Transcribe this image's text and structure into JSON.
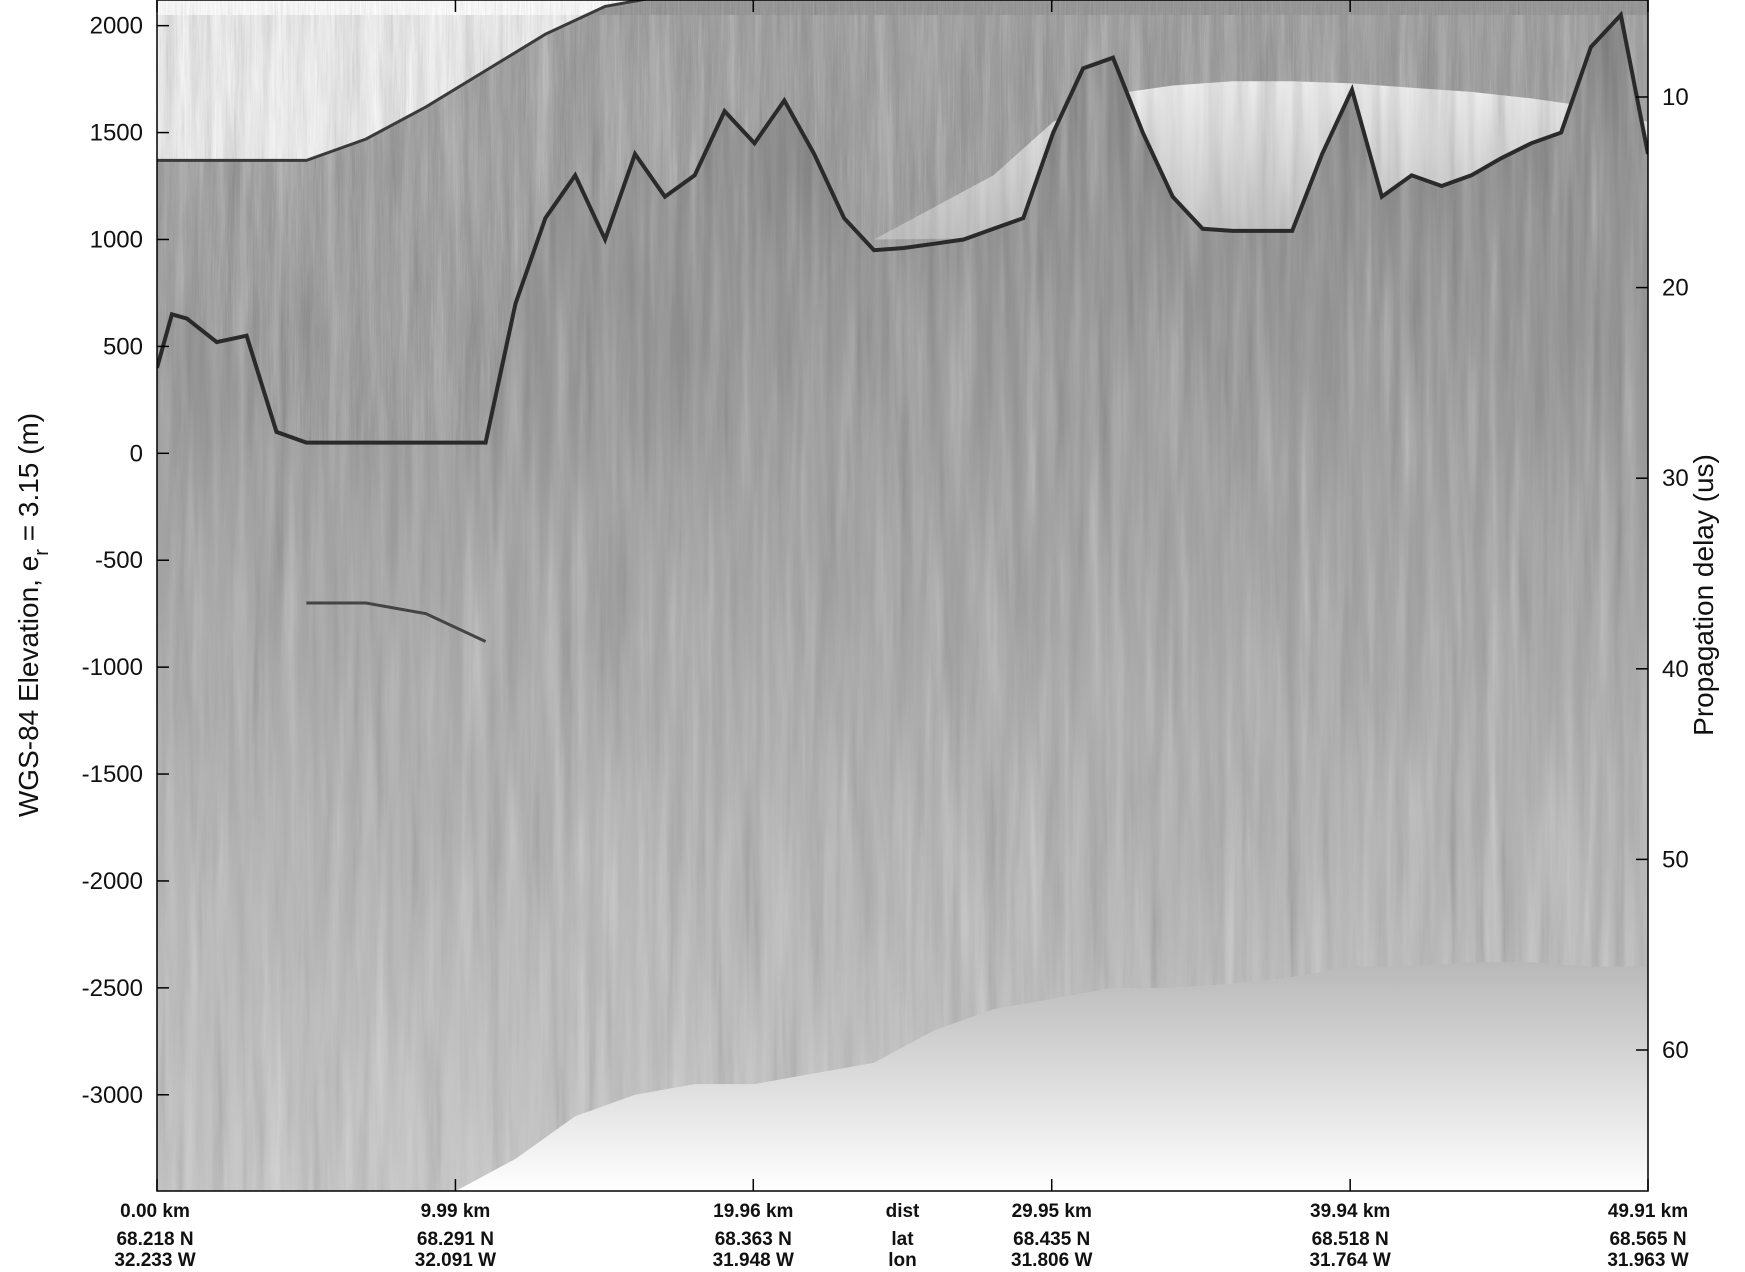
{
  "chart_data": {
    "type": "heatmap",
    "description_colormap": "grayscale",
    "left_axis": {
      "label_main": "WGS-84 Elevation, e",
      "label_sub": "r",
      "label_rest": " = 3.15 (m)",
      "ticks": [
        2000,
        1500,
        1000,
        500,
        0,
        -500,
        -1000,
        -1500,
        -2000,
        -2500,
        -3000
      ],
      "range": [
        -3450,
        2120
      ]
    },
    "right_axis": {
      "label": "Propagation delay (us)",
      "ticks": [
        10,
        20,
        30,
        40,
        50,
        60
      ]
    },
    "x_axis": {
      "range": [
        0,
        49.91
      ],
      "row_titles": [
        "dist",
        "lat",
        "lon"
      ],
      "ticks": [
        {
          "dist": 0.0,
          "dist_label": "0.00 km",
          "lat": "68.218 N",
          "lon": "32.233 W"
        },
        {
          "dist": 9.99,
          "dist_label": "9.99 km",
          "lat": "68.291 N",
          "lon": "32.091 W"
        },
        {
          "dist": 19.96,
          "dist_label": "19.96 km",
          "lat": "68.363 N",
          "lon": "31.948 W"
        },
        {
          "dist": 29.95,
          "dist_label": "29.95 km",
          "lat": "68.435 N",
          "lon": "31.806 W"
        },
        {
          "dist": 39.94,
          "dist_label": "39.94 km",
          "lat": "68.518 N",
          "lon": "31.764 W"
        },
        {
          "dist": 49.91,
          "dist_label": "49.91 km",
          "lat": "68.565 N",
          "lon": "31.963 W"
        }
      ]
    },
    "surface_elevation_profile": {
      "distance_km": [
        0,
        5,
        7,
        9,
        11,
        13,
        15,
        17,
        19,
        21,
        23,
        25,
        27,
        29,
        31,
        33,
        35,
        37,
        39,
        41,
        43,
        45,
        47,
        49.91
      ],
      "elevation_m": [
        1370,
        1370,
        1470,
        1620,
        1790,
        1960,
        2090,
        2140,
        2140,
        2140,
        2140,
        2140,
        2140,
        2140,
        2140,
        2140,
        2140,
        2140,
        2140,
        2140,
        2140,
        2140,
        2140,
        2140
      ]
    },
    "bed_elevation_profile": {
      "distance_km": [
        0,
        0.5,
        1,
        2,
        3,
        4,
        5,
        6,
        7,
        8,
        9,
        10,
        11,
        12,
        13,
        14,
        15,
        16,
        17,
        18,
        19,
        20,
        21,
        22,
        23,
        24,
        25,
        26,
        27,
        28,
        29,
        30,
        31,
        32,
        33,
        34,
        35,
        36,
        37,
        38,
        39,
        40,
        41,
        42,
        43,
        44,
        45,
        46,
        47,
        48,
        49,
        49.91
      ],
      "elevation_m": [
        400,
        650,
        630,
        520,
        550,
        100,
        50,
        50,
        50,
        50,
        50,
        50,
        50,
        700,
        1100,
        1300,
        1000,
        1400,
        1200,
        1300,
        1600,
        1450,
        1650,
        1400,
        1100,
        950,
        960,
        980,
        1000,
        1050,
        1100,
        1500,
        1800,
        1850,
        1500,
        1200,
        1050,
        1040,
        1040,
        1040,
        1400,
        1700,
        1200,
        1300,
        1250,
        1300,
        1380,
        1450,
        1500,
        1900,
        2050,
        1400
      ]
    },
    "ice_shelf_bright_region": {
      "distance_km": [
        24,
        28,
        30,
        32,
        34,
        36,
        38,
        40,
        42,
        44,
        46,
        48,
        49.91
      ],
      "top_m": [
        1000,
        1300,
        1550,
        1680,
        1720,
        1740,
        1740,
        1730,
        1710,
        1690,
        1660,
        1620,
        1550
      ]
    },
    "signal_floor_profile": {
      "distance_km": [
        0,
        2,
        4,
        6,
        8,
        10,
        12,
        14,
        16,
        18,
        20,
        22,
        24,
        26,
        28,
        30,
        32,
        34,
        36,
        38,
        40,
        42,
        44,
        46,
        48,
        49.91
      ],
      "elevation_m": [
        -3450,
        -3450,
        -3450,
        -3450,
        -3450,
        -3450,
        -3300,
        -3100,
        -3000,
        -2950,
        -2950,
        -2900,
        -2850,
        -2700,
        -2600,
        -2550,
        -2500,
        -2500,
        -2480,
        -2450,
        -2400,
        -2400,
        -2380,
        -2380,
        -2400,
        -2400
      ]
    },
    "internal_reflector": {
      "distance_km": [
        5,
        7,
        9,
        11
      ],
      "elevation_m": [
        -700,
        -700,
        -750,
        -880
      ]
    },
    "grid": false,
    "legend": "none"
  }
}
